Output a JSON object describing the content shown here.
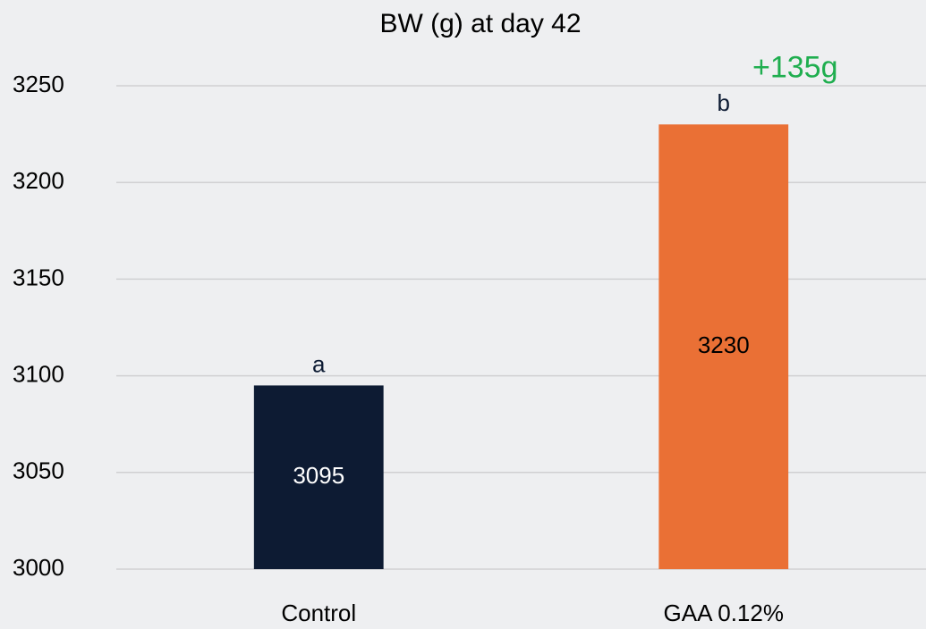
{
  "chart_data": {
    "type": "bar",
    "title": "BW (g) at day 42",
    "categories": [
      "Control",
      "GAA 0.12%"
    ],
    "values": [
      3095,
      3230
    ],
    "colors": [
      "#0d1b33",
      "#ea7035"
    ],
    "label_colors": [
      "#ffffff",
      "#000000"
    ],
    "significance_letters": [
      "a",
      "b"
    ],
    "annotation": "+135g",
    "annotation_color": "#1fae4f",
    "ylim": [
      3000,
      3250
    ],
    "yticks": [
      3000,
      3050,
      3100,
      3150,
      3200,
      3250
    ],
    "grid": true
  }
}
